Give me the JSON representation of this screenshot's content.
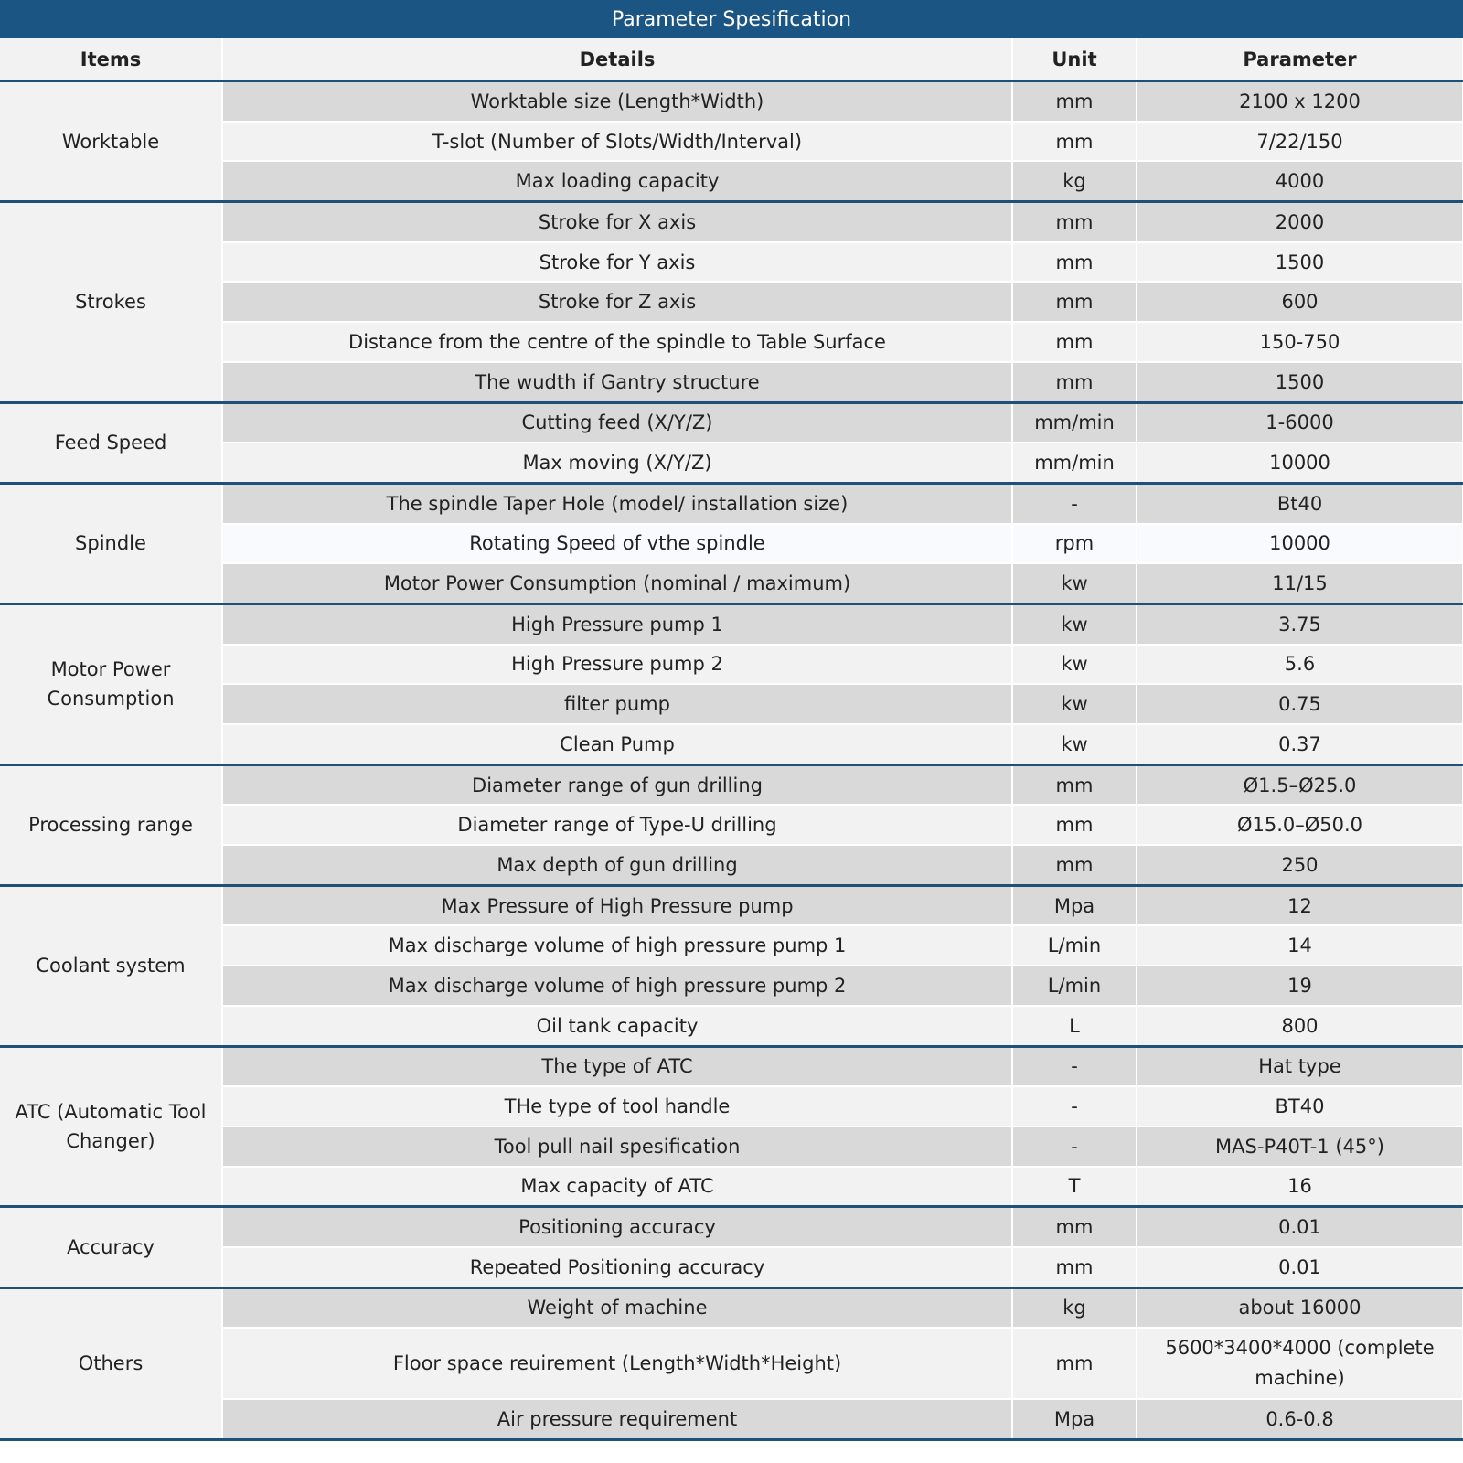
{
  "title": "Parameter Spesification",
  "headers": {
    "items": "Items",
    "details": "Details",
    "unit": "Unit",
    "parameter": "Parameter"
  },
  "colors": {
    "header_blue": "#1b5583",
    "separator": "#1f5079",
    "row_dark": "#d9d9d9",
    "row_light": "#f2f2f2"
  },
  "groups": [
    {
      "item": "Worktable",
      "rows": [
        {
          "details": "Worktable size (Length*Width)",
          "unit": "mm",
          "parameter": "2100 x 1200"
        },
        {
          "details": "T-slot (Number of Slots/Width/Interval)",
          "unit": "mm",
          "parameter": "7/22/150"
        },
        {
          "details": "Max loading capacity",
          "unit": "kg",
          "parameter": "4000"
        }
      ]
    },
    {
      "item": "Strokes",
      "rows": [
        {
          "details": "Stroke for X axis",
          "unit": "mm",
          "parameter": "2000"
        },
        {
          "details": "Stroke for Y axis",
          "unit": "mm",
          "parameter": "1500"
        },
        {
          "details": "Stroke for Z axis",
          "unit": "mm",
          "parameter": "600"
        },
        {
          "details": "Distance from the centre of the spindle to Table Surface",
          "unit": "mm",
          "parameter": "150-750"
        },
        {
          "details": "The wudth if Gantry structure",
          "unit": "mm",
          "parameter": "1500"
        }
      ]
    },
    {
      "item": "Feed Speed",
      "rows": [
        {
          "details": "Cutting feed (X/Y/Z)",
          "unit": "mm/min",
          "parameter": "1-6000"
        },
        {
          "details": "Max moving (X/Y/Z)",
          "unit": "mm/min",
          "parameter": "10000"
        }
      ]
    },
    {
      "item": "Spindle",
      "rows": [
        {
          "details": "The spindle Taper Hole (model/ installation size)",
          "unit": "-",
          "parameter": "Bt40"
        },
        {
          "details": "Rotating Speed of vthe spindle",
          "unit": "rpm",
          "parameter": "10000"
        },
        {
          "details": "Motor Power Consumption (nominal / maximum)",
          "unit": "kw",
          "parameter": "11/15"
        }
      ]
    },
    {
      "item": "Motor Power Consumption",
      "rows": [
        {
          "details": "High Pressure pump 1",
          "unit": "kw",
          "parameter": "3.75"
        },
        {
          "details": "High Pressure pump 2",
          "unit": "kw",
          "parameter": "5.6"
        },
        {
          "details": "filter pump",
          "unit": "kw",
          "parameter": "0.75"
        },
        {
          "details": "Clean Pump",
          "unit": "kw",
          "parameter": "0.37"
        }
      ]
    },
    {
      "item": "Processing range",
      "rows": [
        {
          "details": "Diameter range of gun drilling",
          "unit": "mm",
          "parameter": "Ø1.5–Ø25.0"
        },
        {
          "details": "Diameter range of Type-U drilling",
          "unit": "mm",
          "parameter": "Ø15.0–Ø50.0"
        },
        {
          "details": "Max depth of gun drilling",
          "unit": "mm",
          "parameter": "250"
        }
      ]
    },
    {
      "item": "Coolant system",
      "rows": [
        {
          "details": "Max Pressure of High Pressure pump",
          "unit": "Mpa",
          "parameter": "12"
        },
        {
          "details": "Max discharge volume of high pressure pump 1",
          "unit": "L/min",
          "parameter": "14"
        },
        {
          "details": "Max discharge volume of high pressure pump 2",
          "unit": "L/min",
          "parameter": "19"
        },
        {
          "details": "Oil tank capacity",
          "unit": "L",
          "parameter": "800"
        }
      ]
    },
    {
      "item": "ATC (Automatic Tool Changer)",
      "rows": [
        {
          "details": "The type of ATC",
          "unit": "-",
          "parameter": "Hat type"
        },
        {
          "details": "THe type of tool handle",
          "unit": "-",
          "parameter": "BT40"
        },
        {
          "details": "Tool pull nail spesification",
          "unit": "-",
          "parameter": "MAS-P40T-1 (45°)"
        },
        {
          "details": "Max capacity of ATC",
          "unit": "T",
          "parameter": "16"
        }
      ]
    },
    {
      "item": "Accuracy",
      "rows": [
        {
          "details": "Positioning accuracy",
          "unit": "mm",
          "parameter": "0.01"
        },
        {
          "details": "Repeated Positioning accuracy",
          "unit": "mm",
          "parameter": "0.01"
        }
      ]
    },
    {
      "item": "Others",
      "rows": [
        {
          "details": "Weight of machine",
          "unit": "kg",
          "parameter": "about 16000"
        },
        {
          "details": "Floor space reuirement (Length*Width*Height)",
          "unit": "mm",
          "parameter": "5600*3400*4000 (complete machine)"
        },
        {
          "details": "Air pressure requirement",
          "unit": "Mpa",
          "parameter": "0.6-0.8"
        }
      ]
    }
  ]
}
